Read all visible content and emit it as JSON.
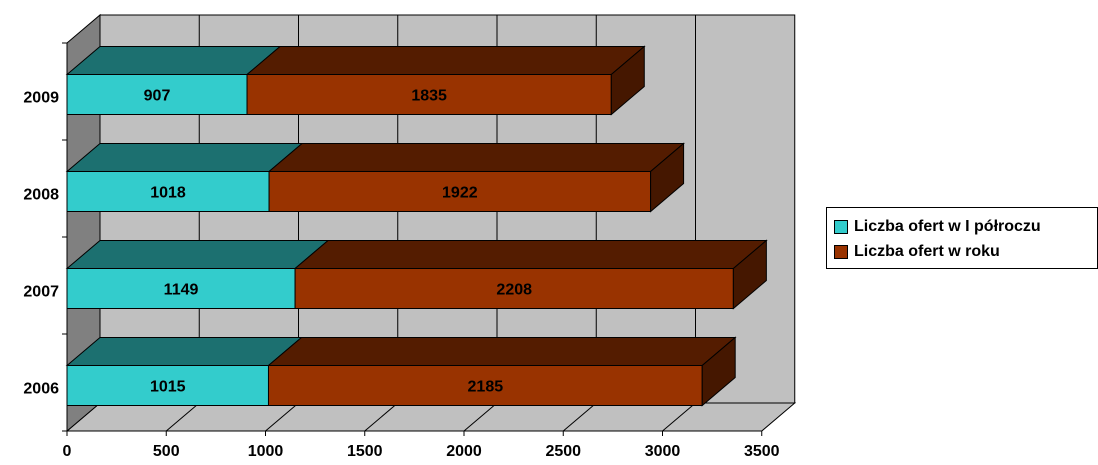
{
  "chart_data": {
    "type": "bar",
    "orientation": "horizontal",
    "stacked": true,
    "three_d": true,
    "categories": [
      "2006",
      "2007",
      "2008",
      "2009"
    ],
    "series": [
      {
        "name": "Liczba ofert w I półroczu",
        "values": [
          1015,
          1149,
          1018,
          907
        ],
        "color": "#33CCCC"
      },
      {
        "name": "Liczba ofert w roku",
        "values": [
          2185,
          2208,
          1922,
          1835
        ],
        "color": "#993300"
      }
    ],
    "xlim": [
      0,
      3500
    ],
    "xticks": [
      "0",
      "500",
      "1000",
      "1500",
      "2000",
      "2500",
      "3000",
      "3500"
    ],
    "grid": true,
    "legend_position": "right",
    "colors": {
      "wall": "#C0C0C0",
      "side_wall": "#808080",
      "floor": "#C0C0C0"
    }
  }
}
